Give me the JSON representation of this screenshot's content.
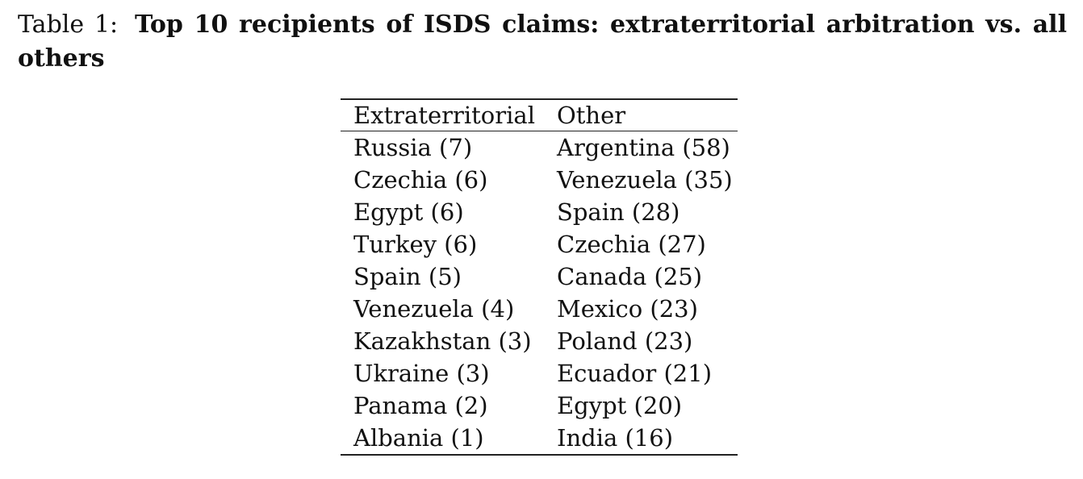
{
  "caption": {
    "label": "Table 1:",
    "title": "Top 10 recipients of ISDS claims: extraterritorial arbitration vs. all others"
  },
  "table": {
    "headers": [
      "Extraterritorial",
      "Other"
    ],
    "rows": [
      [
        "Russia (7)",
        "Argentina (58)"
      ],
      [
        "Czechia (6)",
        "Venezuela (35)"
      ],
      [
        "Egypt (6)",
        "Spain (28)"
      ],
      [
        "Turkey (6)",
        "Czechia (27)"
      ],
      [
        "Spain (5)",
        "Canada (25)"
      ],
      [
        "Venezuela (4)",
        "Mexico (23)"
      ],
      [
        "Kazakhstan (3)",
        "Poland (23)"
      ],
      [
        "Ukraine (3)",
        "Ecuador (21)"
      ],
      [
        "Panama (2)",
        "Egypt (20)"
      ],
      [
        "Albania (1)",
        "India (16)"
      ]
    ]
  }
}
